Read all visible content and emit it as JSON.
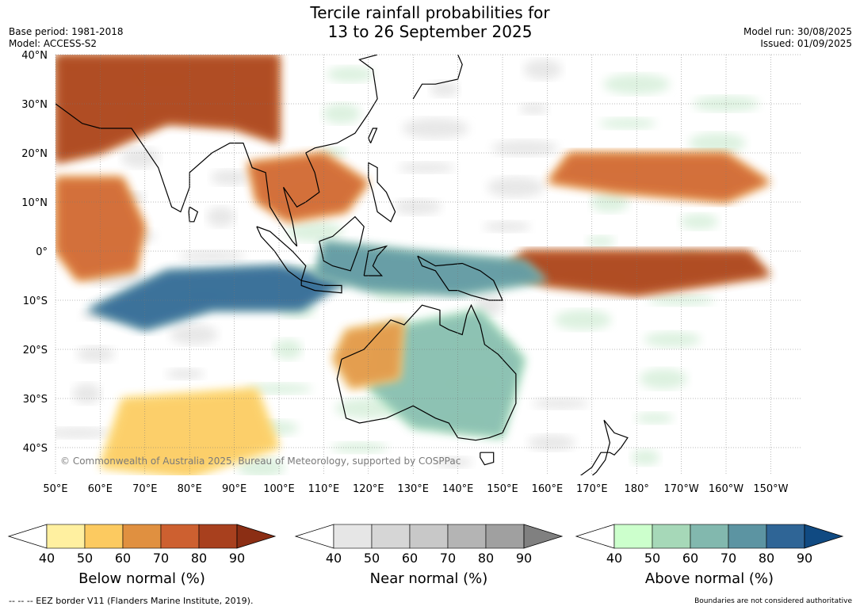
{
  "header": {
    "title_line1": "Tercile rainfall probabilities for",
    "title_line2": "13 to 26 September 2025",
    "base_period": "Base period: 1981-2018",
    "model": "Model: ACCESS-S2",
    "model_run": "Model run: 30/08/2025",
    "issued": "Issued: 01/09/2025"
  },
  "map": {
    "lon_labels": [
      "50°E",
      "60°E",
      "70°E",
      "80°E",
      "90°E",
      "100°E",
      "110°E",
      "120°E",
      "130°E",
      "140°E",
      "150°E",
      "160°E",
      "170°E",
      "180°",
      "170°W",
      "160°W",
      "150°W"
    ],
    "lat_labels": [
      "40°N",
      "30°N",
      "20°N",
      "10°N",
      "0°",
      "10°S",
      "20°S",
      "30°S",
      "40°S"
    ],
    "copyright": "© Commonwealth of Australia 2025, Bureau of Meteorology, supported by COSPPac",
    "colors": {
      "land_outline": "#000000",
      "grid": "#777777"
    },
    "regions": [
      {
        "name": "south-asia-dry",
        "category": "below",
        "level": 80
      },
      {
        "name": "arabian-sea-dry",
        "category": "below",
        "level": 70
      },
      {
        "name": "south-china-sea-dry",
        "category": "below",
        "level": 70
      },
      {
        "name": "north-pacific-dry-band",
        "category": "below",
        "level": 70
      },
      {
        "name": "equatorial-pacific-dry-band",
        "category": "below",
        "level": 80
      },
      {
        "name": "indian-ocean-wet",
        "category": "above",
        "level": 80
      },
      {
        "name": "maritime-continent-wet",
        "category": "above",
        "level": 70
      },
      {
        "name": "australia-wet",
        "category": "above",
        "level": 60
      },
      {
        "name": "southern-indian-ocean-dry",
        "category": "below",
        "level": 50
      },
      {
        "name": "western-australia-dry",
        "category": "below",
        "level": 60
      }
    ]
  },
  "colorbars": [
    {
      "title": "Below normal (%)",
      "ticks": [
        "40",
        "50",
        "60",
        "70",
        "80",
        "90"
      ],
      "colors": [
        "#fff0a0",
        "#fcca60",
        "#e09040",
        "#cd6030",
        "#a8401e",
        "#8b2e14"
      ]
    },
    {
      "title": "Near normal (%)",
      "ticks": [
        "40",
        "50",
        "60",
        "70",
        "80",
        "90"
      ],
      "colors": [
        "#e6e6e6",
        "#d6d6d6",
        "#c8c8c8",
        "#b4b4b4",
        "#a0a0a0",
        "#808080"
      ]
    },
    {
      "title": "Above normal (%)",
      "ticks": [
        "40",
        "50",
        "60",
        "70",
        "80",
        "90"
      ],
      "colors": [
        "#ccffcc",
        "#a6d8b8",
        "#82b8ae",
        "#5c94a2",
        "#2f6596",
        "#104a82"
      ]
    }
  ],
  "footer": {
    "eez": "--  --  -- EEZ border V11 (Flanders Marine Institute, 2019).",
    "disclaimer": "Boundaries are not considered authoritative"
  }
}
